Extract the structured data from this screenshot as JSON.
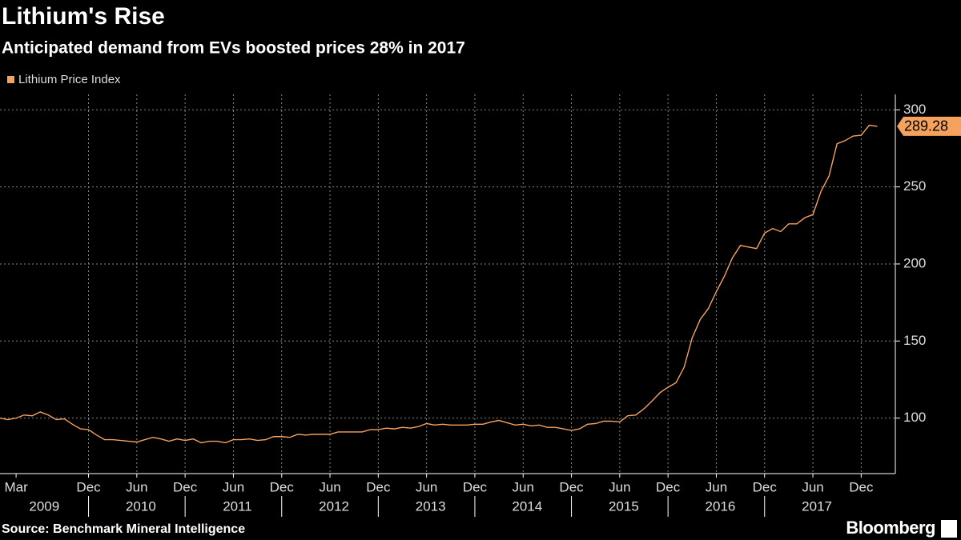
{
  "chart_data": {
    "type": "line",
    "title": "Lithium's Rise",
    "subtitle": "Anticipated demand from EVs boosted prices 28% in 2017",
    "source": "Source: Benchmark Mineral Intelligence",
    "brand": "Bloomberg",
    "series": [
      {
        "name": "Lithium Price Index",
        "color": "#f5a25d",
        "values": [
          100,
          99,
          100,
          102,
          101.5,
          104,
          102,
          99,
          99.5,
          96,
          93,
          92.5,
          89,
          86,
          86,
          85.5,
          85,
          84.5,
          86,
          87.5,
          86.5,
          85,
          86.5,
          85.5,
          86.5,
          84,
          85,
          85,
          84,
          86,
          86,
          86.5,
          85.5,
          86,
          88,
          88,
          87.5,
          89.5,
          89,
          89.5,
          89.5,
          89.5,
          91,
          91,
          91,
          91,
          92.5,
          92.5,
          93.5,
          93,
          94,
          93.5,
          94.5,
          96.5,
          95.5,
          96,
          95.5,
          95.5,
          95.5,
          96,
          96,
          97.5,
          98.5,
          97,
          95.5,
          96,
          95,
          95.5,
          94,
          94,
          93,
          92,
          93,
          96,
          96.5,
          98,
          98,
          97.5,
          101.5,
          102,
          106,
          111,
          116.5,
          120,
          123,
          133,
          152,
          164,
          171,
          182,
          192,
          204,
          212,
          211,
          210,
          220,
          223,
          221,
          226,
          226,
          230,
          232,
          247,
          257,
          278,
          280,
          283,
          283.5,
          290,
          289.28
        ]
      }
    ],
    "x_start": "2009-01",
    "xticks": [
      {
        "value": "2009-03",
        "label": "Mar"
      },
      {
        "value": "2009-12",
        "label": "Dec"
      },
      {
        "value": "2010-06",
        "label": "Jun"
      },
      {
        "value": "2010-12",
        "label": "Dec"
      },
      {
        "value": "2011-06",
        "label": "Jun"
      },
      {
        "value": "2011-12",
        "label": "Dec"
      },
      {
        "value": "2012-06",
        "label": "Jun"
      },
      {
        "value": "2012-12",
        "label": "Dec"
      },
      {
        "value": "2013-06",
        "label": "Jun"
      },
      {
        "value": "2013-12",
        "label": "Dec"
      },
      {
        "value": "2014-06",
        "label": "Jun"
      },
      {
        "value": "2014-12",
        "label": "Dec"
      },
      {
        "value": "2015-06",
        "label": "Jun"
      },
      {
        "value": "2015-12",
        "label": "Dec"
      },
      {
        "value": "2016-06",
        "label": "Jun"
      },
      {
        "value": "2016-12",
        "label": "Dec"
      },
      {
        "value": "2017-06",
        "label": "Jun"
      },
      {
        "value": "2017-12",
        "label": "Dec"
      }
    ],
    "years": [
      2009,
      2010,
      2011,
      2012,
      2013,
      2014,
      2015,
      2016,
      2017
    ],
    "ylim": [
      64,
      310
    ],
    "yticks": [
      100,
      150,
      200,
      250,
      300
    ],
    "grid": true
  }
}
